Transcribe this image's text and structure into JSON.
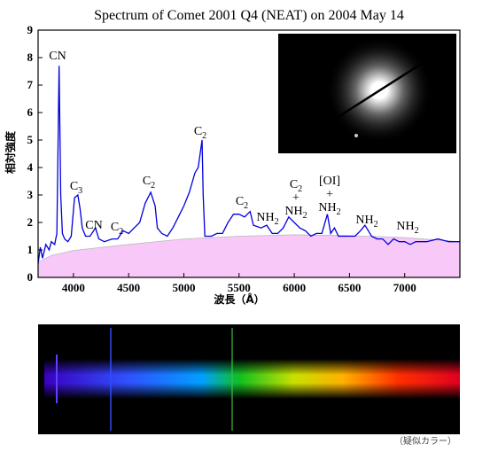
{
  "chart_data": {
    "type": "line",
    "title": "Spectrum of Comet 2001 Q4 (NEAT) on 2004 May 14",
    "xlabel": "波長（Å）",
    "ylabel": "相対強度",
    "caption": "（疑似カラー）",
    "xlim": [
      3680,
      7500
    ],
    "ylim": [
      0,
      9
    ],
    "xticks": [
      4000,
      4500,
      5000,
      5500,
      6000,
      6500,
      7000
    ],
    "yticks": [
      0,
      1,
      2,
      3,
      4,
      5,
      6,
      7,
      8,
      9
    ],
    "series": [
      {
        "color": "#0000dd",
        "kind": "line",
        "x": [
          3680,
          3700,
          3720,
          3750,
          3780,
          3800,
          3830,
          3850,
          3870,
          3885,
          3900,
          3920,
          3950,
          3980,
          4010,
          4040,
          4060,
          4080,
          4110,
          4150,
          4200,
          4230,
          4280,
          4350,
          4400,
          4450,
          4500,
          4550,
          4600,
          4650,
          4700,
          4740,
          4760,
          4800,
          4850,
          4900,
          4950,
          5000,
          5050,
          5100,
          5130,
          5165,
          5175,
          5190,
          5250,
          5300,
          5350,
          5400,
          5450,
          5500,
          5550,
          5600,
          5630,
          5700,
          5750,
          5800,
          5850,
          5900,
          5950,
          6000,
          6050,
          6100,
          6150,
          6200,
          6250,
          6300,
          6330,
          6364,
          6400,
          6450,
          6500,
          6550,
          6600,
          6640,
          6700,
          6750,
          6800,
          6850,
          6900,
          6950,
          7000,
          7050,
          7100,
          7200,
          7300,
          7400,
          7500
        ],
        "values": [
          0.5,
          1.1,
          0.7,
          1.2,
          1.0,
          1.3,
          1.2,
          1.6,
          7.7,
          3.0,
          1.6,
          1.4,
          1.3,
          1.5,
          2.9,
          3.0,
          2.5,
          1.8,
          1.5,
          1.5,
          1.8,
          1.4,
          1.3,
          1.4,
          1.4,
          1.7,
          1.6,
          1.8,
          2.0,
          2.7,
          3.1,
          2.6,
          1.8,
          1.6,
          1.5,
          1.8,
          2.2,
          2.6,
          3.1,
          3.8,
          4.0,
          5.0,
          3.0,
          1.5,
          1.5,
          1.6,
          1.6,
          2.0,
          2.3,
          2.3,
          2.2,
          2.4,
          1.9,
          1.8,
          1.9,
          1.6,
          1.6,
          1.8,
          2.2,
          2.0,
          1.8,
          1.7,
          1.5,
          1.6,
          1.6,
          2.3,
          1.6,
          1.8,
          1.5,
          1.5,
          1.5,
          1.5,
          1.7,
          1.9,
          1.5,
          1.4,
          1.4,
          1.2,
          1.4,
          1.3,
          1.3,
          1.2,
          1.3,
          1.3,
          1.4,
          1.3,
          1.3
        ]
      },
      {
        "color": "#f8c8f8",
        "kind": "area",
        "x": [
          3680,
          3800,
          4000,
          4500,
          5000,
          5500,
          6000,
          6500,
          7000,
          7500
        ],
        "values": [
          0.55,
          0.8,
          0.98,
          1.2,
          1.4,
          1.5,
          1.55,
          1.52,
          1.45,
          1.3
        ]
      }
    ],
    "annotations": [
      [
        {
          "text": "CN"
        }
      ],
      [
        {
          "text": "C",
          "sub": "3"
        }
      ],
      [
        {
          "text": "CN"
        }
      ],
      [
        {
          "text": "C",
          "sub": "2"
        }
      ],
      [
        {
          "text": "C",
          "sub": "2"
        }
      ],
      [
        {
          "text": "C",
          "sub": "2"
        }
      ],
      [
        {
          "text": "C",
          "sub": "2"
        }
      ],
      [
        {
          "text": "NH",
          "sub": "2"
        }
      ],
      [
        {
          "text": "C",
          "sub": "2"
        },
        {
          "text": "+"
        },
        {
          "text": "NH",
          "sub": "2"
        }
      ],
      [
        {
          "text": "[OI]"
        },
        {
          "text": "+"
        },
        {
          "text": "NH",
          "sub": "2"
        }
      ],
      [
        {
          "text": "NH",
          "sub": "2"
        }
      ],
      [
        {
          "text": "NH",
          "sub": "2"
        }
      ]
    ]
  }
}
